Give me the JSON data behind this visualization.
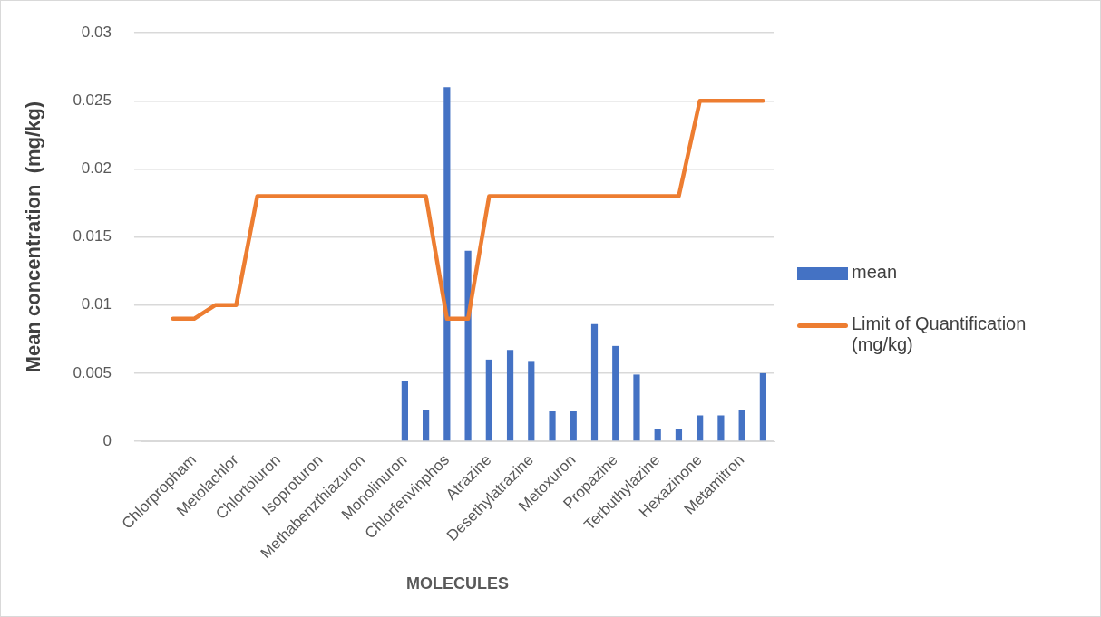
{
  "chart_data": {
    "type": "bar",
    "xlabel": "MOLECULES",
    "ylabel": "Mean concentration  (mg/kg)",
    "categories": [
      null,
      null,
      "Chlorpropham",
      null,
      "Metolachlor",
      null,
      "Chlortoluron",
      null,
      "Isoproturon",
      null,
      "Methabenzthiazuron",
      null,
      "Monolinuron",
      null,
      "Chlorfenvinphos",
      null,
      "Atrazine",
      null,
      "Desethylatrazine",
      null,
      "Metoxuron",
      null,
      "Propazine",
      null,
      "Terbuthylazine",
      null,
      "Hexazinone",
      null,
      "Metamitron",
      null
    ],
    "series": [
      {
        "name": "mean",
        "color": "#4472c4",
        "values": [
          null,
          null,
          null,
          null,
          null,
          null,
          null,
          null,
          null,
          null,
          null,
          null,
          0.0044,
          0.0023,
          0.026,
          0.014,
          0.006,
          0.0067,
          0.0059,
          0.0022,
          0.0022,
          0.0086,
          0.007,
          0.0049,
          0.0009,
          0.0009,
          0.0019,
          0.0019,
          0.0023,
          0.005
        ]
      },
      {
        "name": "Limit of Quantification (mg/kg)",
        "type": "line",
        "color": "#ed7d31",
        "values": [
          null,
          0.009,
          0.009,
          0.01,
          0.01,
          0.018,
          0.018,
          0.018,
          0.018,
          0.018,
          0.018,
          0.018,
          0.018,
          0.018,
          0.009,
          0.009,
          0.018,
          0.018,
          0.018,
          0.018,
          0.018,
          0.018,
          0.018,
          0.018,
          0.018,
          0.018,
          0.025,
          0.025,
          0.025,
          0.025
        ]
      }
    ],
    "ylim": [
      0,
      0.03
    ],
    "yticks": [
      0,
      0.005,
      0.01,
      0.015,
      0.02,
      0.025,
      0.03
    ],
    "grid": "y",
    "legend": "right"
  }
}
